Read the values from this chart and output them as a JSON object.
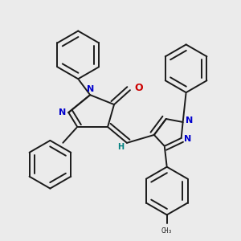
{
  "background_color": "#ebebeb",
  "atom_colors": {
    "N": "#0000cc",
    "O": "#cc0000",
    "H": "#008080"
  },
  "line_color": "#1a1a1a",
  "line_width": 1.4,
  "figsize": [
    3.0,
    3.0
  ],
  "dpi": 100
}
